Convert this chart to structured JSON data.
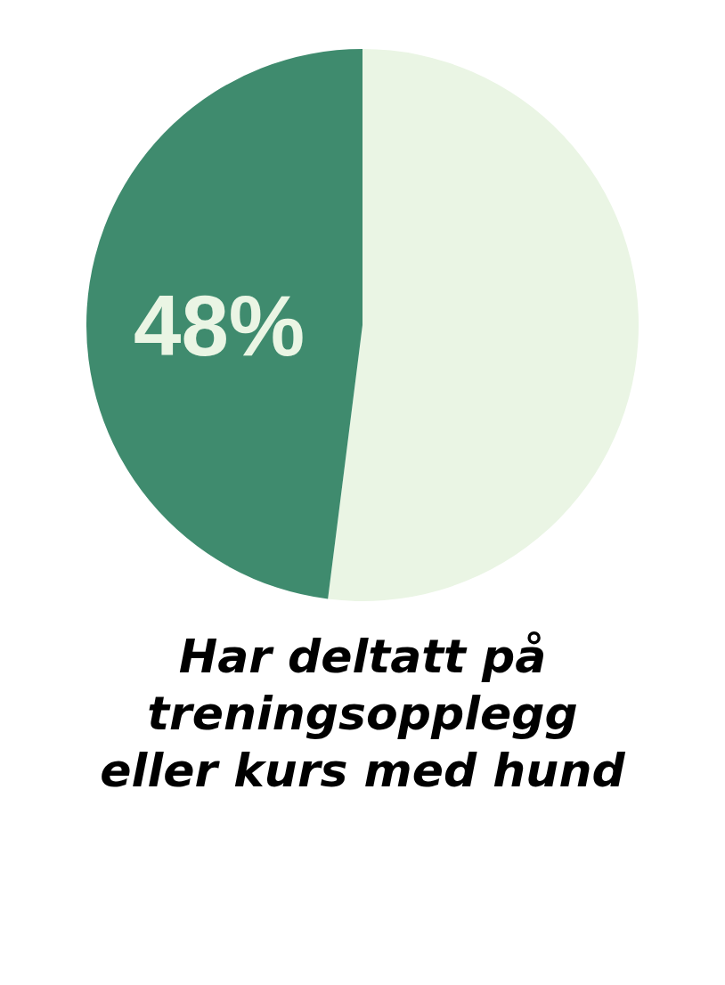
{
  "chart_data": {
    "type": "pie",
    "title": "Har deltatt på treningsopplegg eller kurs med hund",
    "categories": [
      null,
      null
    ],
    "values": [
      52,
      48
    ],
    "colors": [
      "#eaf5e4",
      "#3f8b6e"
    ],
    "value_labels": [
      null,
      "48%"
    ],
    "legend": false
  }
}
